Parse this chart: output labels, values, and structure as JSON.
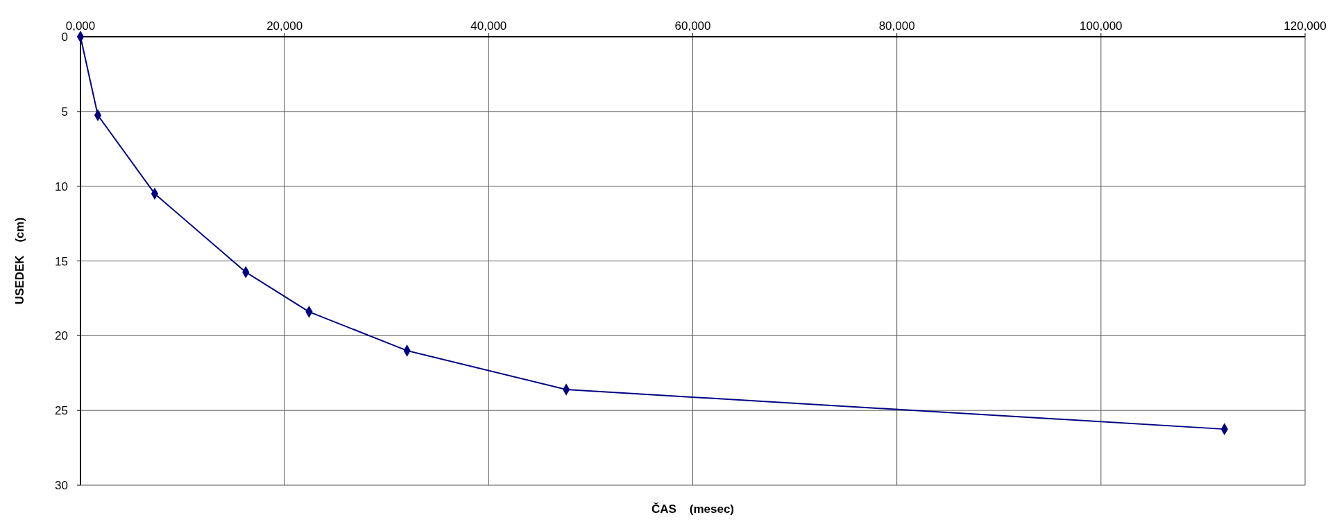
{
  "chart_data": {
    "type": "line",
    "xlabel": "ČAS    (mesec)",
    "ylabel": "USEDEK    (cm)",
    "x": [
      0,
      1700,
      7270,
      16200,
      22400,
      32000,
      47600,
      112100
    ],
    "series": [
      {
        "color": "#000080",
        "values": [
          0,
          5.25,
          10.5,
          15.75,
          18.4,
          21,
          23.6,
          26.25
        ]
      }
    ],
    "xlim": [
      0,
      120000
    ],
    "xticks": [
      {
        "value": 0,
        "label": "0,000"
      },
      {
        "value": 20000,
        "label": "20,000"
      },
      {
        "value": 40000,
        "label": "40,000"
      },
      {
        "value": 60000,
        "label": "60,000"
      },
      {
        "value": 80000,
        "label": "80,000"
      },
      {
        "value": 100000,
        "label": "100,000"
      },
      {
        "value": 120000,
        "label": "120,000"
      }
    ],
    "ylim": [
      30,
      0
    ],
    "yticks": [
      0,
      5,
      10,
      15,
      20,
      25,
      30
    ],
    "grid": true,
    "marker": "diamond",
    "line_style": "solid"
  }
}
